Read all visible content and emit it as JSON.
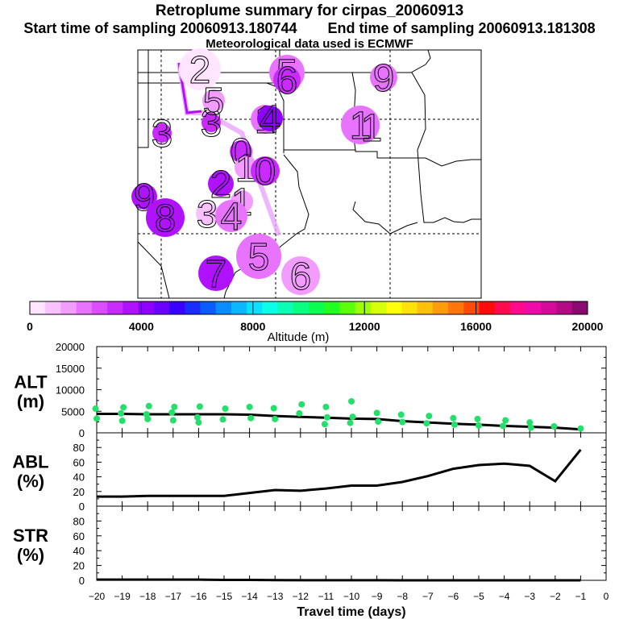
{
  "title": {
    "line1": "Retroplume summary for cirpas_20060913",
    "start_label": "Start time of sampling 20060913.180744",
    "end_label": "End time of sampling 20060913.181308",
    "line3": "Meteorological data used is ECMWF"
  },
  "colorbar": {
    "label": "Altitude (m)",
    "tick_labels": [
      "0",
      "4000",
      "8000",
      "12000",
      "16000",
      "20000"
    ],
    "colors": [
      "#ffe5ff",
      "#f9c2ff",
      "#f29cff",
      "#e873ff",
      "#dc4dff",
      "#c92bff",
      "#b012ff",
      "#9000ff",
      "#6a00ff",
      "#3a00ff",
      "#1a2cff",
      "#0a5cff",
      "#0a8cff",
      "#0ab8ff",
      "#0ae0ff",
      "#0affe6",
      "#0affb4",
      "#0aff82",
      "#0aff50",
      "#20ff20",
      "#5cff0a",
      "#9cff0a",
      "#d8ff0a",
      "#ffff0a",
      "#ffe20a",
      "#ffc00a",
      "#ff9c0a",
      "#ff760a",
      "#ff4a0a",
      "#ff0a0a",
      "#ff0a4e",
      "#ff0a8e",
      "#f00aaa",
      "#d60a9a",
      "#b40a86",
      "#8a0a70"
    ]
  },
  "map": {
    "labels": [
      {
        "text": "2",
        "color": "#ffe5ff"
      },
      {
        "text": "5",
        "color": "#e873ff"
      },
      {
        "text": "6",
        "color": "#c92bff"
      },
      {
        "text": "9",
        "color": "#e873ff"
      },
      {
        "text": "1",
        "color": "#e873ff"
      },
      {
        "text": "1",
        "color": "#f29cff"
      },
      {
        "text": "1",
        "color": "#e873ff"
      },
      {
        "text": "3",
        "color": "#c92bff"
      },
      {
        "text": "3",
        "color": "#c92bff"
      },
      {
        "text": "4",
        "color": "#9000ff"
      },
      {
        "text": "5",
        "color": "#f29cff"
      },
      {
        "text": "0",
        "color": "#c92bff"
      },
      {
        "text": "1",
        "color": "#f29cff"
      },
      {
        "text": "0",
        "color": "#c92bff"
      },
      {
        "text": "2",
        "color": "#b012ff"
      },
      {
        "text": "1",
        "color": "#f29cff"
      },
      {
        "text": "9",
        "color": "#b012ff"
      },
      {
        "text": "8",
        "color": "#b012ff"
      },
      {
        "text": "3",
        "color": "#f9c2ff"
      },
      {
        "text": "4",
        "color": "#e873ff"
      },
      {
        "text": "5",
        "color": "#e873ff"
      },
      {
        "text": "7",
        "color": "#b012ff"
      },
      {
        "text": "6",
        "color": "#f29cff"
      }
    ]
  },
  "chart_data": [
    {
      "type": "scatter",
      "panel_label_line1": "ALT",
      "panel_label_line2": "(m)",
      "xlabel": "Travel time (days)",
      "x_tick_labels": [
        "−20",
        "−19",
        "−18",
        "−17",
        "−16",
        "−15",
        "−14",
        "−13",
        "−12",
        "−11",
        "−10",
        "−9",
        "−8",
        "−7",
        "−6",
        "−5",
        "−4",
        "−3",
        "−2",
        "−1",
        "0"
      ],
      "xlim": [
        -20,
        0
      ],
      "ylim": [
        0,
        20000
      ],
      "y_tick_labels": [
        "0",
        "5000",
        "10000",
        "15000",
        "20000"
      ],
      "series": [
        {
          "name": "median altitude",
          "x": [
            -20,
            -19,
            -18,
            -17,
            -16,
            -15,
            -14,
            -13,
            -12,
            -11,
            -10,
            -9,
            -8,
            -7,
            -6,
            -5,
            -4,
            -3,
            -2,
            -1
          ],
          "values": [
            4400,
            4400,
            4300,
            4300,
            4300,
            4300,
            4200,
            3900,
            3700,
            3500,
            3300,
            3200,
            2700,
            2400,
            2100,
            1900,
            1600,
            1400,
            1200,
            800
          ]
        },
        {
          "name": "cluster centroid altitudes",
          "x": [
            -20,
            -20,
            -19,
            -19,
            -19,
            -18,
            -18,
            -18,
            -17,
            -17,
            -17,
            -16,
            -16,
            -16,
            -15,
            -15,
            -14,
            -14,
            -13,
            -13,
            -12,
            -12,
            -11,
            -11,
            -11,
            -10,
            -10,
            -10,
            -9,
            -9,
            -8,
            -8,
            -7,
            -7,
            -6,
            -6,
            -5,
            -5,
            -4,
            -4,
            -3,
            -3,
            -2,
            -1
          ],
          "values": [
            5600,
            3300,
            5900,
            4500,
            2800,
            6200,
            4300,
            3200,
            6000,
            4700,
            2900,
            6100,
            3600,
            2400,
            5600,
            3100,
            6000,
            3400,
            5700,
            3200,
            6600,
            4500,
            6000,
            3600,
            2000,
            7300,
            3700,
            2300,
            4600,
            2600,
            4200,
            2500,
            3900,
            2200,
            3400,
            1900,
            3200,
            1700,
            2900,
            1600,
            2400,
            1200,
            1500,
            1000
          ]
        }
      ]
    },
    {
      "type": "line",
      "panel_label_line1": "ABL",
      "panel_label_line2": "(%)",
      "xlim": [
        -20,
        0
      ],
      "ylim": [
        0,
        100
      ],
      "y_tick_labels": [
        "0",
        "20",
        "40",
        "60",
        "80"
      ],
      "series": [
        {
          "name": "ABL fraction",
          "x": [
            -20,
            -19,
            -18,
            -17,
            -16,
            -15,
            -14,
            -13,
            -12,
            -11,
            -10,
            -9,
            -8,
            -7,
            -6,
            -5,
            -4,
            -3,
            -2,
            -1
          ],
          "values": [
            13,
            13,
            14,
            14,
            14,
            14,
            18,
            22,
            21,
            24,
            28,
            28,
            33,
            41,
            51,
            56,
            58,
            55,
            34,
            77
          ]
        }
      ]
    },
    {
      "type": "line",
      "panel_label_line1": "STR",
      "panel_label_line2": "(%)",
      "xlim": [
        -20,
        0
      ],
      "ylim": [
        0,
        100
      ],
      "y_tick_labels": [
        "0",
        "20",
        "40",
        "60",
        "80"
      ],
      "series": [
        {
          "name": "STR fraction",
          "x": [
            -20,
            -19,
            -18,
            -17,
            -16,
            -15,
            -14,
            -13,
            -12,
            -11,
            -10,
            -9,
            -8,
            -7,
            -6,
            -5,
            -4,
            -3,
            -2,
            -1
          ],
          "values": [
            1,
            1,
            1,
            1,
            1,
            0.5,
            0.5,
            0.3,
            0.2,
            0.2,
            0.1,
            0.1,
            0,
            0,
            0,
            0,
            0,
            0,
            0,
            0
          ]
        }
      ]
    }
  ]
}
